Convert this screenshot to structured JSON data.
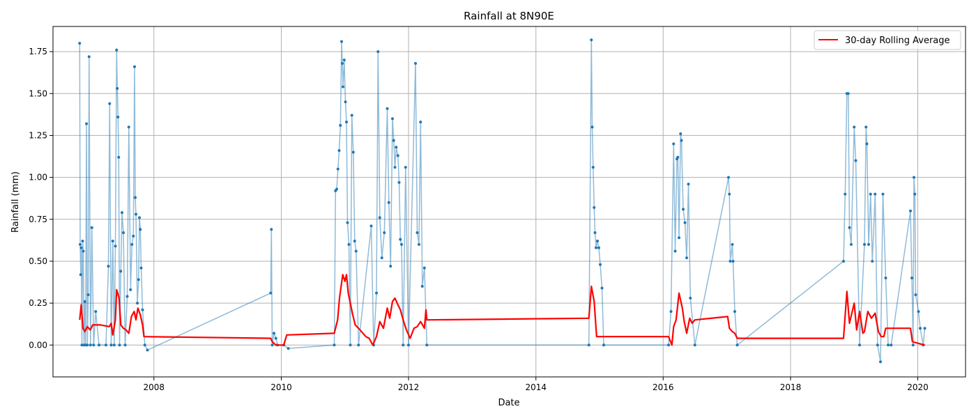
{
  "chart_data": {
    "type": "line",
    "title": "Rainfall at 8N90E",
    "xlabel": "Date",
    "ylabel": "Rainfall (mm)",
    "xlim": [
      "2006-06-01",
      "2020-10-01"
    ],
    "ylim": [
      -0.19,
      1.9
    ],
    "x_ticks": [
      "2008-01-01",
      "2010-01-01",
      "2012-01-01",
      "2014-01-01",
      "2016-01-01",
      "2018-01-01",
      "2020-01-01"
    ],
    "x_tick_labels": [
      "2008",
      "2010",
      "2012",
      "2014",
      "2016",
      "2018",
      "2020"
    ],
    "y_ticks": [
      0.0,
      0.25,
      0.5,
      0.75,
      1.0,
      1.25,
      1.5,
      1.75
    ],
    "y_tick_labels": [
      "0.00",
      "0.25",
      "0.50",
      "0.75",
      "1.00",
      "1.25",
      "1.50",
      "1.75"
    ],
    "grid": true,
    "legend_position": "top-right",
    "colors": {
      "daily": "#1f77b4",
      "rolling": "#ff0000"
    },
    "series": [
      {
        "style": "line-with-markers",
        "points": [
          [
            "2006-11-01",
            1.8
          ],
          [
            "2006-11-04",
            0.6
          ],
          [
            "2006-11-07",
            0.42
          ],
          [
            "2006-11-10",
            0.58
          ],
          [
            "2006-11-14",
            0.0
          ],
          [
            "2006-11-18",
            0.62
          ],
          [
            "2006-11-22",
            0.56
          ],
          [
            "2006-11-26",
            0.0
          ],
          [
            "2006-12-01",
            0.26
          ],
          [
            "2006-12-05",
            0.0
          ],
          [
            "2006-12-10",
            1.32
          ],
          [
            "2006-12-15",
            0.0
          ],
          [
            "2006-12-20",
            0.3
          ],
          [
            "2006-12-25",
            1.72
          ],
          [
            "2007-01-02",
            0.0
          ],
          [
            "2007-01-10",
            0.7
          ],
          [
            "2007-01-20",
            0.0
          ],
          [
            "2007-02-01",
            0.2
          ],
          [
            "2007-02-20",
            0.0
          ],
          [
            "2007-04-01",
            0.0
          ],
          [
            "2007-04-15",
            0.47
          ],
          [
            "2007-04-22",
            1.44
          ],
          [
            "2007-05-01",
            0.0
          ],
          [
            "2007-05-10",
            0.62
          ],
          [
            "2007-05-18",
            0.0
          ],
          [
            "2007-05-25",
            0.59
          ],
          [
            "2007-06-01",
            1.76
          ],
          [
            "2007-06-05",
            1.53
          ],
          [
            "2007-06-09",
            1.36
          ],
          [
            "2007-06-13",
            1.12
          ],
          [
            "2007-06-18",
            0.0
          ],
          [
            "2007-06-25",
            0.44
          ],
          [
            "2007-07-02",
            0.79
          ],
          [
            "2007-07-10",
            0.67
          ],
          [
            "2007-07-20",
            0.0
          ],
          [
            "2007-08-01",
            0.29
          ],
          [
            "2007-08-10",
            1.3
          ],
          [
            "2007-08-20",
            0.33
          ],
          [
            "2007-08-28",
            0.6
          ],
          [
            "2007-09-05",
            0.65
          ],
          [
            "2007-09-12",
            1.66
          ],
          [
            "2007-09-16",
            0.88
          ],
          [
            "2007-09-20",
            0.78
          ],
          [
            "2007-09-28",
            0.25
          ],
          [
            "2007-10-05",
            0.39
          ],
          [
            "2007-10-10",
            0.76
          ],
          [
            "2007-10-15",
            0.69
          ],
          [
            "2007-10-20",
            0.46
          ],
          [
            "2007-10-28",
            0.21
          ],
          [
            "2007-11-10",
            0.0
          ],
          [
            "2007-11-25",
            -0.03
          ],
          [
            "2009-11-01",
            0.31
          ],
          [
            "2009-11-05",
            0.69
          ],
          [
            "2009-11-10",
            0.0
          ],
          [
            "2009-11-20",
            0.07
          ],
          [
            "2009-12-01",
            0.04
          ],
          [
            "2009-12-10",
            0.0
          ],
          [
            "2010-01-15",
            0.0
          ],
          [
            "2010-02-10",
            -0.02
          ],
          [
            "2010-11-01",
            0.0
          ],
          [
            "2010-11-08",
            0.92
          ],
          [
            "2010-11-15",
            0.93
          ],
          [
            "2010-11-22",
            1.05
          ],
          [
            "2010-11-29",
            1.16
          ],
          [
            "2010-12-06",
            1.31
          ],
          [
            "2010-12-13",
            1.81
          ],
          [
            "2010-12-17",
            1.68
          ],
          [
            "2010-12-21",
            1.54
          ],
          [
            "2010-12-28",
            1.7
          ],
          [
            "2011-01-04",
            1.45
          ],
          [
            "2011-01-10",
            1.33
          ],
          [
            "2011-01-16",
            0.73
          ],
          [
            "2011-01-24",
            0.6
          ],
          [
            "2011-02-01",
            0.0
          ],
          [
            "2011-02-10",
            1.37
          ],
          [
            "2011-02-18",
            1.15
          ],
          [
            "2011-02-26",
            0.62
          ],
          [
            "2011-03-06",
            0.56
          ],
          [
            "2011-03-20",
            0.0
          ],
          [
            "2011-06-01",
            0.71
          ],
          [
            "2011-06-15",
            0.0
          ],
          [
            "2011-07-01",
            0.31
          ],
          [
            "2011-07-10",
            1.75
          ],
          [
            "2011-07-20",
            0.76
          ],
          [
            "2011-08-01",
            0.52
          ],
          [
            "2011-08-15",
            0.67
          ],
          [
            "2011-09-01",
            1.41
          ],
          [
            "2011-09-10",
            0.85
          ],
          [
            "2011-09-20",
            0.47
          ],
          [
            "2011-10-01",
            1.35
          ],
          [
            "2011-10-08",
            1.22
          ],
          [
            "2011-10-15",
            1.06
          ],
          [
            "2011-10-22",
            1.18
          ],
          [
            "2011-11-01",
            1.13
          ],
          [
            "2011-11-08",
            0.97
          ],
          [
            "2011-11-15",
            0.63
          ],
          [
            "2011-11-22",
            0.6
          ],
          [
            "2011-12-01",
            0.0
          ],
          [
            "2011-12-15",
            1.06
          ],
          [
            "2012-01-01",
            0.0
          ],
          [
            "2012-02-10",
            1.68
          ],
          [
            "2012-02-20",
            0.67
          ],
          [
            "2012-03-01",
            0.6
          ],
          [
            "2012-03-10",
            1.33
          ],
          [
            "2012-03-20",
            0.35
          ],
          [
            "2012-04-01",
            0.46
          ],
          [
            "2012-04-15",
            0.0
          ],
          [
            "2014-11-01",
            0.0
          ],
          [
            "2014-11-15",
            1.82
          ],
          [
            "2014-11-20",
            1.3
          ],
          [
            "2014-11-25",
            1.06
          ],
          [
            "2014-12-01",
            0.82
          ],
          [
            "2014-12-06",
            0.67
          ],
          [
            "2014-12-12",
            0.58
          ],
          [
            "2014-12-20",
            0.62
          ],
          [
            "2014-12-28",
            0.58
          ],
          [
            "2015-01-05",
            0.48
          ],
          [
            "2015-01-15",
            0.34
          ],
          [
            "2015-01-25",
            0.0
          ],
          [
            "2016-02-01",
            0.0
          ],
          [
            "2016-02-15",
            0.2
          ],
          [
            "2016-03-01",
            1.2
          ],
          [
            "2016-03-10",
            0.56
          ],
          [
            "2016-03-20",
            1.11
          ],
          [
            "2016-03-25",
            1.12
          ],
          [
            "2016-04-01",
            0.64
          ],
          [
            "2016-04-10",
            1.26
          ],
          [
            "2016-04-15",
            1.22
          ],
          [
            "2016-04-25",
            0.81
          ],
          [
            "2016-05-05",
            0.73
          ],
          [
            "2016-05-15",
            0.52
          ],
          [
            "2016-05-25",
            0.96
          ],
          [
            "2016-06-05",
            0.28
          ],
          [
            "2016-07-01",
            0.0
          ],
          [
            "2017-01-10",
            1.0
          ],
          [
            "2017-01-15",
            0.9
          ],
          [
            "2017-01-20",
            0.5
          ],
          [
            "2017-02-01",
            0.6
          ],
          [
            "2017-02-05",
            0.5
          ],
          [
            "2017-02-15",
            0.2
          ],
          [
            "2017-03-01",
            0.0
          ],
          [
            "2018-11-01",
            0.5
          ],
          [
            "2018-11-10",
            0.9
          ],
          [
            "2018-11-20",
            1.5
          ],
          [
            "2018-11-28",
            1.5
          ],
          [
            "2018-12-05",
            0.7
          ],
          [
            "2018-12-15",
            0.6
          ],
          [
            "2019-01-01",
            1.3
          ],
          [
            "2019-01-10",
            1.1
          ],
          [
            "2019-02-01",
            0.0
          ],
          [
            "2019-03-01",
            0.6
          ],
          [
            "2019-03-10",
            1.3
          ],
          [
            "2019-03-15",
            1.2
          ],
          [
            "2019-03-25",
            0.6
          ],
          [
            "2019-04-05",
            0.9
          ],
          [
            "2019-04-15",
            0.5
          ],
          [
            "2019-05-01",
            0.9
          ],
          [
            "2019-05-15",
            0.0
          ],
          [
            "2019-06-01",
            -0.1
          ],
          [
            "2019-06-15",
            0.9
          ],
          [
            "2019-07-01",
            0.4
          ],
          [
            "2019-07-15",
            0.0
          ],
          [
            "2019-08-01",
            0.0
          ],
          [
            "2019-11-20",
            0.8
          ],
          [
            "2019-11-28",
            0.4
          ],
          [
            "2019-12-05",
            0.0
          ],
          [
            "2019-12-10",
            1.0
          ],
          [
            "2019-12-15",
            0.9
          ],
          [
            "2019-12-20",
            0.3
          ],
          [
            "2020-01-05",
            0.2
          ],
          [
            "2020-01-15",
            0.1
          ],
          [
            "2020-02-01",
            0.0
          ],
          [
            "2020-02-10",
            0.1
          ]
        ]
      },
      {
        "name": "30-day Rolling Average",
        "style": "line",
        "points": [
          [
            "2006-11-01",
            0.15
          ],
          [
            "2006-11-10",
            0.24
          ],
          [
            "2006-11-20",
            0.1
          ],
          [
            "2006-12-01",
            0.08
          ],
          [
            "2006-12-15",
            0.11
          ],
          [
            "2007-01-01",
            0.09
          ],
          [
            "2007-01-15",
            0.12
          ],
          [
            "2007-03-01",
            0.12
          ],
          [
            "2007-04-20",
            0.11
          ],
          [
            "2007-05-01",
            0.13
          ],
          [
            "2007-05-10",
            0.06
          ],
          [
            "2007-05-25",
            0.15
          ],
          [
            "2007-06-01",
            0.33
          ],
          [
            "2007-06-15",
            0.28
          ],
          [
            "2007-06-25",
            0.12
          ],
          [
            "2007-07-10",
            0.1
          ],
          [
            "2007-07-25",
            0.09
          ],
          [
            "2007-08-10",
            0.07
          ],
          [
            "2007-08-25",
            0.17
          ],
          [
            "2007-09-10",
            0.2
          ],
          [
            "2007-09-20",
            0.15
          ],
          [
            "2007-10-01",
            0.22
          ],
          [
            "2007-10-15",
            0.18
          ],
          [
            "2007-10-28",
            0.12
          ],
          [
            "2007-11-05",
            0.05
          ],
          [
            "2009-11-01",
            0.04
          ],
          [
            "2009-11-10",
            0.02
          ],
          [
            "2009-12-01",
            0.0
          ],
          [
            "2010-01-15",
            0.0
          ],
          [
            "2010-02-01",
            0.06
          ],
          [
            "2010-11-01",
            0.07
          ],
          [
            "2010-11-20",
            0.15
          ],
          [
            "2010-12-01",
            0.28
          ],
          [
            "2010-12-10",
            0.35
          ],
          [
            "2010-12-20",
            0.42
          ],
          [
            "2011-01-01",
            0.38
          ],
          [
            "2011-01-10",
            0.42
          ],
          [
            "2011-01-20",
            0.31
          ],
          [
            "2011-02-01",
            0.25
          ],
          [
            "2011-02-15",
            0.18
          ],
          [
            "2011-03-01",
            0.12
          ],
          [
            "2011-03-20",
            0.1
          ],
          [
            "2011-05-01",
            0.05
          ],
          [
            "2011-05-20",
            0.04
          ],
          [
            "2011-06-10",
            0.0
          ],
          [
            "2011-07-01",
            0.05
          ],
          [
            "2011-07-20",
            0.14
          ],
          [
            "2011-08-10",
            0.1
          ],
          [
            "2011-09-01",
            0.22
          ],
          [
            "2011-09-15",
            0.16
          ],
          [
            "2011-10-01",
            0.26
          ],
          [
            "2011-10-15",
            0.28
          ],
          [
            "2011-11-01",
            0.24
          ],
          [
            "2011-11-15",
            0.21
          ],
          [
            "2011-12-01",
            0.15
          ],
          [
            "2011-12-20",
            0.09
          ],
          [
            "2012-01-10",
            0.04
          ],
          [
            "2012-02-01",
            0.1
          ],
          [
            "2012-02-20",
            0.11
          ],
          [
            "2012-03-10",
            0.14
          ],
          [
            "2012-04-01",
            0.1
          ],
          [
            "2012-04-10",
            0.21
          ],
          [
            "2012-04-15",
            0.15
          ],
          [
            "2014-11-01",
            0.16
          ],
          [
            "2014-11-15",
            0.35
          ],
          [
            "2014-12-01",
            0.26
          ],
          [
            "2014-12-15",
            0.05
          ],
          [
            "2015-01-01",
            0.05
          ],
          [
            "2016-02-01",
            0.05
          ],
          [
            "2016-02-20",
            0.0
          ],
          [
            "2016-03-01",
            0.11
          ],
          [
            "2016-03-15",
            0.15
          ],
          [
            "2016-04-01",
            0.31
          ],
          [
            "2016-04-20",
            0.22
          ],
          [
            "2016-05-01",
            0.14
          ],
          [
            "2016-05-15",
            0.07
          ],
          [
            "2016-06-01",
            0.16
          ],
          [
            "2016-06-15",
            0.13
          ],
          [
            "2016-07-01",
            0.15
          ],
          [
            "2017-01-05",
            0.17
          ],
          [
            "2017-01-15",
            0.1
          ],
          [
            "2017-02-01",
            0.08
          ],
          [
            "2017-02-15",
            0.07
          ],
          [
            "2017-03-01",
            0.04
          ],
          [
            "2018-11-01",
            0.04
          ],
          [
            "2018-11-20",
            0.32
          ],
          [
            "2018-12-05",
            0.13
          ],
          [
            "2019-01-01",
            0.25
          ],
          [
            "2019-01-15",
            0.09
          ],
          [
            "2019-02-01",
            0.2
          ],
          [
            "2019-02-20",
            0.07
          ],
          [
            "2019-03-01",
            0.08
          ],
          [
            "2019-03-20",
            0.2
          ],
          [
            "2019-04-10",
            0.16
          ],
          [
            "2019-05-01",
            0.19
          ],
          [
            "2019-05-20",
            0.08
          ],
          [
            "2019-06-05",
            0.05
          ],
          [
            "2019-06-20",
            0.05
          ],
          [
            "2019-07-01",
            0.1
          ],
          [
            "2019-11-20",
            0.1
          ],
          [
            "2019-12-01",
            0.02
          ],
          [
            "2020-02-10",
            0.0
          ]
        ]
      }
    ]
  }
}
